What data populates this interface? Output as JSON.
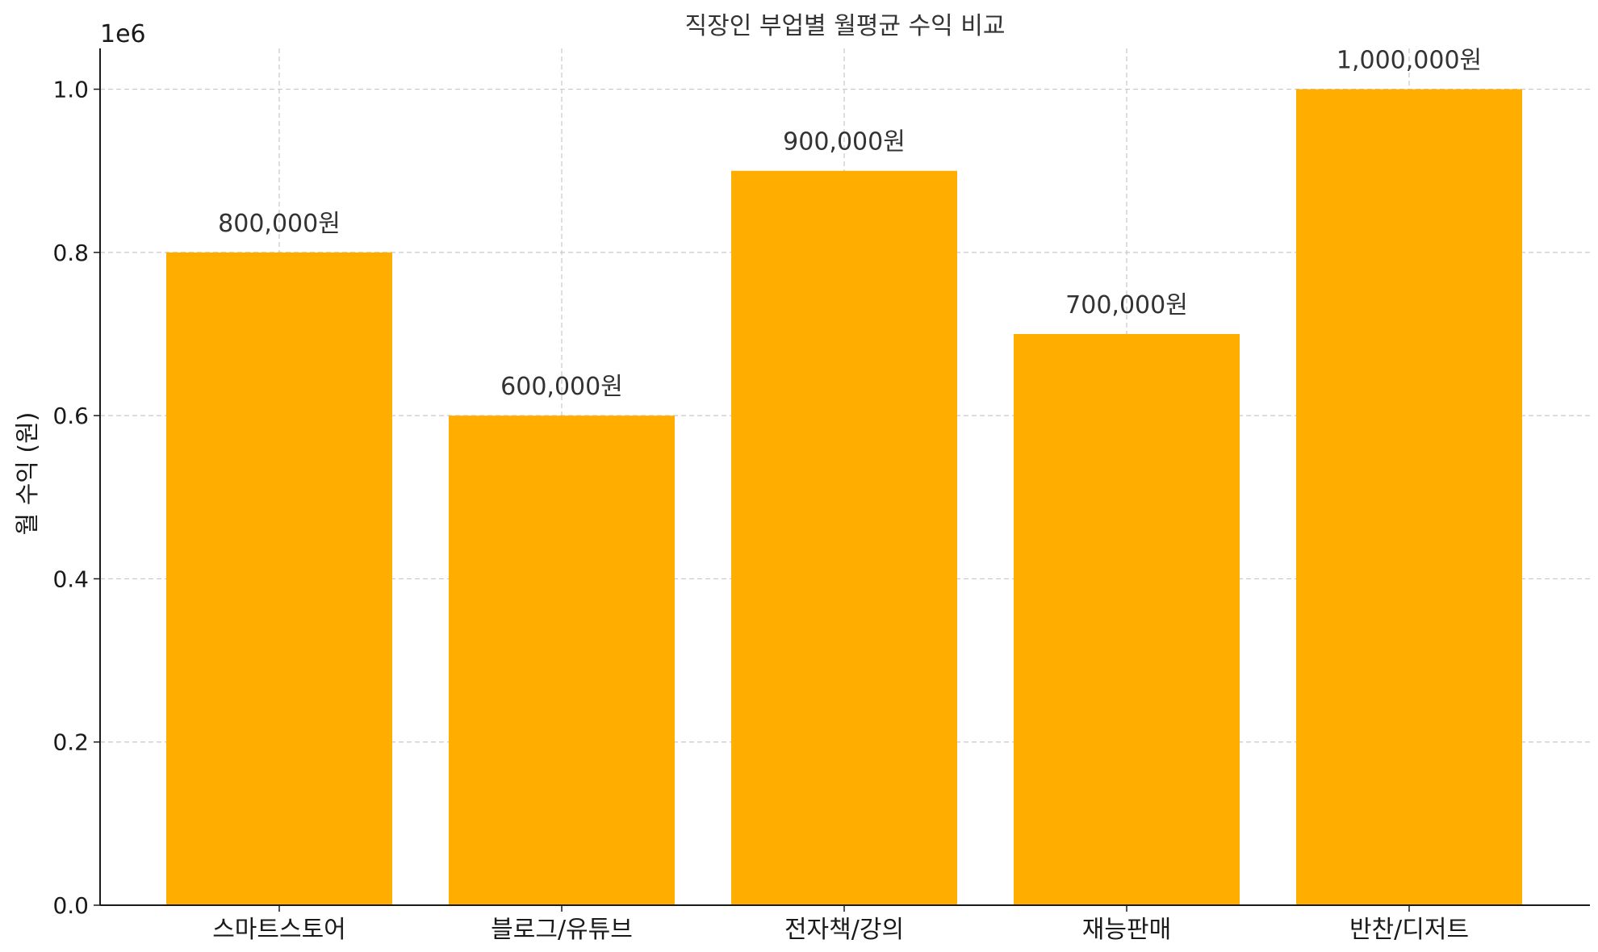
{
  "chart_data": {
    "type": "bar",
    "title": "직장인 부업별 월평균 수익 비교",
    "xlabel": "",
    "ylabel": "월 수익 (원)",
    "y_offset_label": "1e6",
    "categories": [
      "스마트스토어",
      "블로그/유튜브",
      "전자책/강의",
      "재능판매",
      "반찬/디저트"
    ],
    "values": [
      800000,
      600000,
      900000,
      700000,
      1000000
    ],
    "data_labels": [
      "800,000원",
      "600,000원",
      "900,000원",
      "700,000원",
      "1,000,000원"
    ],
    "ylim": [
      0,
      1050000
    ],
    "y_ticks": [
      0,
      200000,
      400000,
      600000,
      800000,
      1000000
    ],
    "y_tick_labels": [
      "0.0",
      "0.2",
      "0.4",
      "0.6",
      "0.8",
      "1.0"
    ],
    "grid": true,
    "bar_color": "#FFAE00",
    "grid_color": "#c8c8c8",
    "axis_color": "#1a1a1a"
  }
}
